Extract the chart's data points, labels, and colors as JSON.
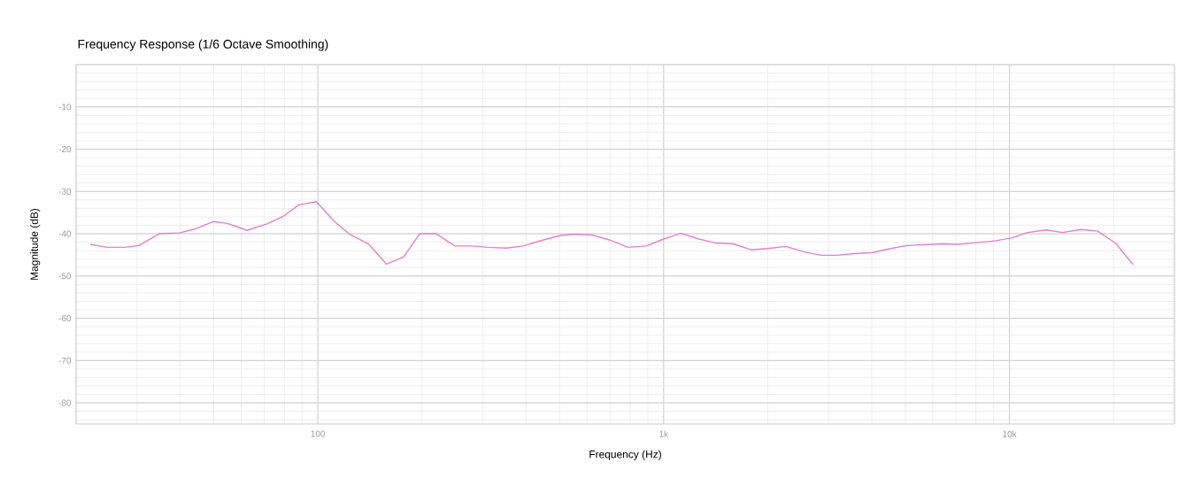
{
  "chart_data": {
    "type": "line",
    "title": "Frequency Response (1/6 Octave Smoothing)",
    "xlabel": "Frequency (Hz)",
    "ylabel": "Magnitude (dB)",
    "log": "x",
    "grid": true,
    "marker": "none",
    "line_style": "solid",
    "xlim": [
      20,
      30000
    ],
    "ylim": [
      -85,
      0
    ],
    "xticks": [
      {
        "value": 100,
        "label": "100"
      },
      {
        "value": 1000,
        "label": "1k"
      },
      {
        "value": 10000,
        "label": "10k"
      }
    ],
    "yticks": [
      -10,
      -20,
      -30,
      -40,
      -50,
      -60,
      -70,
      -80
    ],
    "x": [
      22,
      24.6,
      27.7,
      30.4,
      34.8,
      39.8,
      44,
      50,
      55,
      62.4,
      71.6,
      79,
      88,
      99,
      111,
      123,
      140,
      158,
      177,
      197,
      220,
      249,
      278,
      309,
      351,
      392,
      447,
      503,
      559,
      621,
      700,
      788,
      890,
      997,
      1122,
      1259,
      1413,
      1590,
      1790,
      2000,
      2260,
      2550,
      2850,
      3180,
      3550,
      4010,
      4470,
      5050,
      5640,
      6370,
      7110,
      8030,
      9080,
      10130,
      11300,
      12770,
      14250,
      16100,
      18000,
      20300,
      22770
    ],
    "series": [
      {
        "color": "#e37fd0",
        "values": [
          -42.5,
          -43.2,
          -43.2,
          -42.8,
          -40.0,
          -39.8,
          -38.9,
          -37.1,
          -37.6,
          -39.2,
          -37.6,
          -36.0,
          -33.2,
          -32.4,
          -36.9,
          -40.0,
          -42.4,
          -47.2,
          -45.5,
          -40.0,
          -40.0,
          -42.9,
          -42.9,
          -43.2,
          -43.4,
          -42.9,
          -41.5,
          -40.4,
          -40.1,
          -40.3,
          -41.5,
          -43.2,
          -42.9,
          -41.3,
          -39.9,
          -41.2,
          -42.2,
          -42.4,
          -43.8,
          -43.5,
          -43.0,
          -44.3,
          -45.1,
          -45.1,
          -44.7,
          -44.5,
          -43.6,
          -42.8,
          -42.6,
          -42.4,
          -42.5,
          -42.1,
          -41.7,
          -41.0,
          -39.7,
          -39.1,
          -39.7,
          -39.0,
          -39.4,
          -42.3,
          -47.3
        ]
      }
    ]
  }
}
